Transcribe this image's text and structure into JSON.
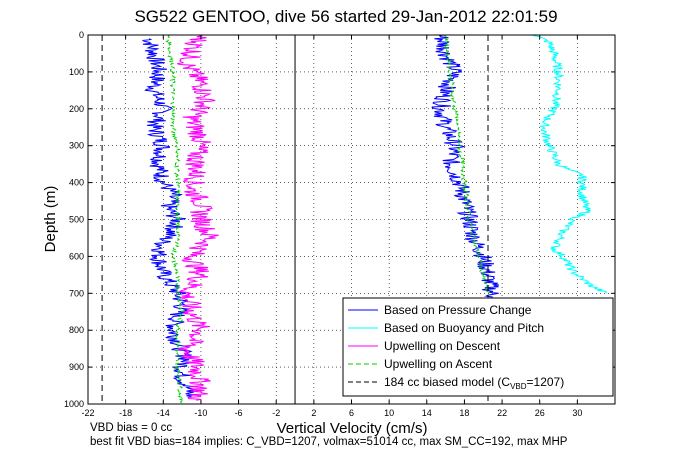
{
  "chart_data": {
    "type": "line",
    "title": "SG522 GENTOO, dive 56 started 29-Jan-2012 22:01:59",
    "xlabel": "Vertical Velocity (cm/s)",
    "ylabel": "Depth (m)",
    "xlim": [
      -22,
      34
    ],
    "ylim": [
      0,
      1000
    ],
    "y_reversed": true,
    "grid": true,
    "legend_position": "bottom-right",
    "x_ticks": [
      -22,
      -18,
      -14,
      -10,
      -6,
      -2,
      2,
      6,
      10,
      14,
      18,
      22,
      26,
      30
    ],
    "y_ticks": [
      0,
      100,
      200,
      300,
      400,
      500,
      600,
      700,
      800,
      900,
      1000
    ],
    "x_tick_labels": [
      "-22",
      "-18",
      "-14",
      "-10",
      "-6",
      "-2",
      "2",
      "6",
      "10",
      "14",
      "18",
      "22",
      "26",
      "30"
    ],
    "y_tick_labels": [
      "0",
      "100",
      "200",
      "300",
      "400",
      "500",
      "600",
      "700",
      "800",
      "900",
      "1000"
    ],
    "zero_line_x": 0,
    "series": [
      {
        "name": "Based on Pressure Change",
        "color": "#0000ff",
        "style": "solid",
        "segments": [
          {
            "x": [
              -15.5,
              -15,
              -14.5,
              -15,
              -14,
              -15,
              -14,
              -14.5,
              -14,
              -13,
              -13.5,
              -12.5,
              -13,
              -14,
              -14.5,
              -14,
              -12.5,
              -12,
              -12.5,
              -13,
              -12.5,
              -12,
              -11.5,
              -12,
              -12,
              -11.5,
              -11
            ],
            "y": [
              10,
              50,
              100,
              150,
              200,
              250,
              300,
              350,
              400,
              430,
              470,
              500,
              530,
              560,
              600,
              650,
              700,
              730,
              760,
              800,
              830,
              860,
              880,
              900,
              930,
              950,
              980
            ]
          },
          {
            "x": [
              15.5,
              16,
              17,
              16,
              15.5,
              16,
              17,
              16.5,
              17.5,
              18,
              18.5,
              19,
              20,
              20.5,
              21
            ],
            "y": [
              0,
              50,
              100,
              150,
              200,
              250,
              300,
              350,
              400,
              450,
              500,
              550,
              600,
              650,
              710
            ]
          }
        ]
      },
      {
        "name": "Based on Buoyancy and Pitch",
        "color": "#00ffff",
        "style": "solid",
        "segments": [
          {
            "x": [
              25.5,
              27,
              27.5,
              28,
              28,
              27.5,
              26.5,
              26.5,
              27,
              28,
              29,
              30.5,
              30.5,
              31,
              29.5,
              28.5,
              28,
              27.5,
              28.5,
              29.5,
              31.5,
              33
            ],
            "y": [
              0,
              20,
              50,
              100,
              150,
              200,
              240,
              260,
              300,
              350,
              365,
              380,
              430,
              480,
              500,
              530,
              560,
              580,
              600,
              640,
              680,
              700
            ]
          }
        ]
      },
      {
        "name": "Upwelling on Descent",
        "color": "#ff00ff",
        "style": "solid",
        "segments": [
          {
            "x": [
              -10,
              -10.5,
              -11.5,
              -10,
              -9.5,
              -11,
              -10,
              -10.5,
              -10.5,
              -11,
              -10,
              -10,
              -9,
              -11,
              -10,
              -11.5,
              -11,
              -10,
              -11.5,
              -10.5,
              -10,
              -10.5
            ],
            "y": [
              0,
              20,
              80,
              130,
              180,
              230,
              280,
              330,
              380,
              420,
              450,
              500,
              550,
              600,
              650,
              700,
              750,
              800,
              850,
              900,
              950,
              990
            ]
          }
        ]
      },
      {
        "name": "Upwelling on Ascent",
        "color": "#00cc00",
        "style": "dashed",
        "segments": [
          {
            "x": [
              -13.5,
              -13,
              -13,
              -13,
              -12.5,
              -12.5,
              -12.5,
              -12.5,
              -12.5,
              -12.5,
              -13,
              -12.5,
              -12.5,
              -12,
              -12.5,
              -12.5,
              -12
            ],
            "y": [
              0,
              100,
              200,
              250,
              300,
              350,
              400,
              450,
              500,
              560,
              600,
              650,
              700,
              750,
              800,
              900,
              1000
            ]
          },
          {
            "x": [
              16,
              16.5,
              17,
              17.5,
              18,
              18.5,
              19,
              19.5,
              20,
              20.5
            ],
            "y": [
              0,
              100,
              200,
              300,
              400,
              500,
              550,
              600,
              650,
              700
            ]
          }
        ]
      },
      {
        "name": "184 cc biased model (C_VBD=1207)",
        "color": "#000000",
        "style": "dashed",
        "segments": [
          {
            "x": [
              -20.5,
              -20.5
            ],
            "y": [
              0,
              1000
            ]
          },
          {
            "x": [
              20.5,
              20.5
            ],
            "y": [
              0,
              1000
            ]
          }
        ]
      }
    ],
    "legend": [
      {
        "label_main": "Based on Pressure Change",
        "label_sub": "",
        "label_tail": "",
        "color": "#0000ff",
        "style": "solid"
      },
      {
        "label_main": "Based on Buoyancy and Pitch",
        "label_sub": "",
        "label_tail": "",
        "color": "#00ffff",
        "style": "solid"
      },
      {
        "label_main": "Upwelling on Descent",
        "label_sub": "",
        "label_tail": "",
        "color": "#ff00ff",
        "style": "solid"
      },
      {
        "label_main": "Upwelling on Ascent",
        "label_sub": "",
        "label_tail": "",
        "color": "#00cc00",
        "style": "dashed"
      },
      {
        "label_main": "184 cc biased model (C",
        "label_sub": "VBD",
        "label_tail": "=1207)",
        "color": "#000000",
        "style": "dashed"
      }
    ],
    "annotations": [
      "VBD bias = 0 cc",
      "best fit VBD bias=184 implies: C_VBD=1207, volmax=51014 cc, max SM_CC=192, max MHP"
    ]
  }
}
